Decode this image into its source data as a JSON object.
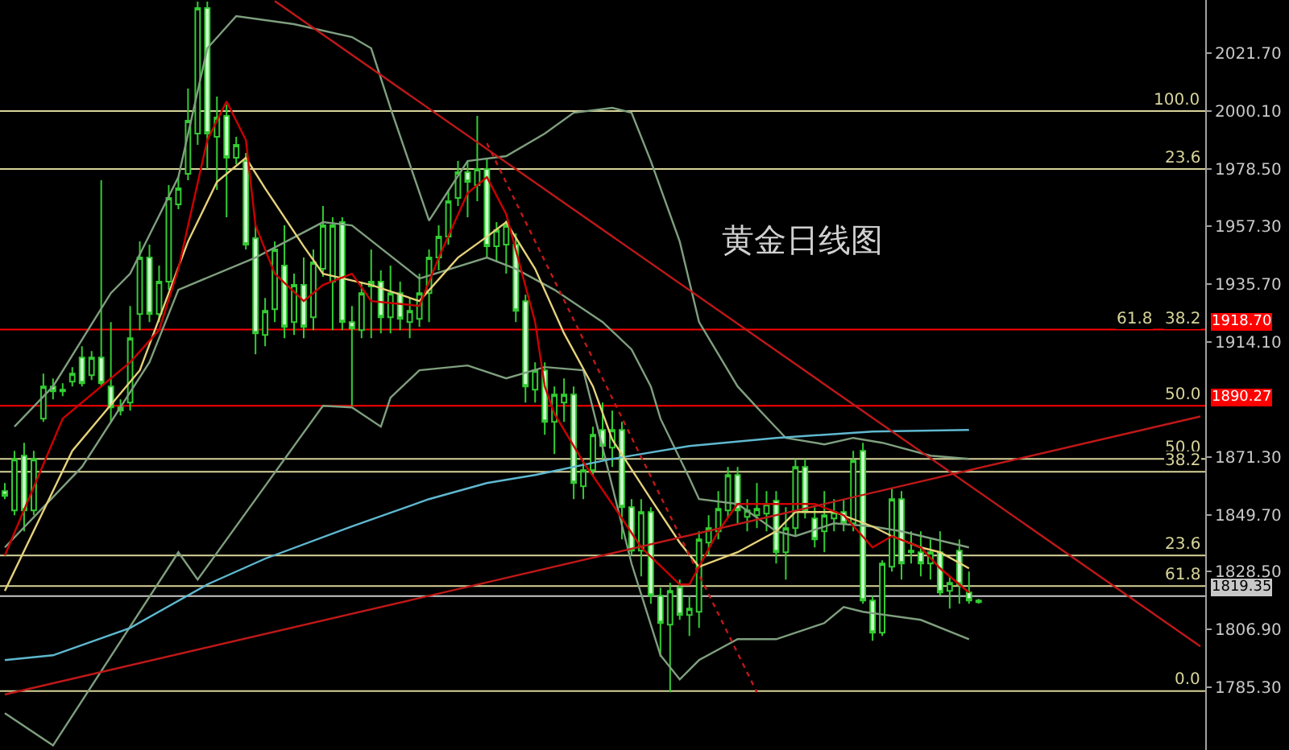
{
  "chart_data": {
    "type": "candlestick",
    "title": "黄金日线图",
    "color": "#33cc33",
    "categories": [
      null,
      null,
      null,
      null,
      null,
      null,
      null,
      null,
      null,
      null,
      null,
      null,
      null,
      null,
      null,
      null,
      null,
      null,
      null,
      null,
      null,
      null,
      null,
      null,
      null,
      null,
      null,
      null,
      null,
      null,
      null,
      null,
      null,
      null,
      null,
      null,
      null,
      null,
      null,
      null,
      null,
      null,
      null,
      null,
      null,
      null,
      null,
      null,
      null,
      null,
      null,
      null,
      null,
      null,
      null,
      null,
      null,
      null,
      null,
      null,
      null,
      null,
      null,
      null,
      null,
      null,
      null,
      null,
      null,
      null,
      null,
      null,
      null,
      null,
      null,
      null,
      null,
      null,
      null,
      null,
      null,
      null,
      null,
      null,
      null,
      null,
      null,
      null,
      null,
      null,
      null,
      null,
      null,
      null,
      null,
      null,
      null,
      null,
      null,
      null,
      null,
      null,
      null,
      null,
      null,
      null,
      null,
      null,
      null,
      null,
      null,
      null,
      null,
      null,
      null,
      null,
      null,
      null,
      null,
      null,
      null,
      null,
      null,
      null,
      null
    ],
    "ohlc": [
      [
        1858.5,
        1861.5,
        1855.5,
        1856.7
      ],
      [
        1851.3,
        1873.5,
        1849.5,
        1870.5
      ],
      [
        1871.7,
        1876.5,
        1843.5,
        1851.3
      ],
      [
        1851.3,
        1873.5,
        1849.5,
        1870.5
      ],
      [
        1885.5,
        1902.3,
        1884.3,
        1897.5
      ],
      [
        1897.5,
        1900.5,
        1892.7,
        1895.7
      ],
      [
        1896.3,
        1898.7,
        1893.9,
        1895.7
      ],
      [
        1899.3,
        1904.7,
        1897.5,
        1902.3
      ],
      [
        1908.3,
        1912.5,
        1897.5,
        1898.7
      ],
      [
        1901.7,
        1910.7,
        1899.9,
        1908.3
      ],
      [
        1908.3,
        1974.3,
        1897.5,
        1898.7
      ],
      [
        1897.5,
        1921.5,
        1884.3,
        1889.7
      ],
      [
        1889.7,
        1892.7,
        1886.7,
        1888.5
      ],
      [
        1891.5,
        1927.5,
        1888.5,
        1915.5
      ],
      [
        1924.5,
        1951.5,
        1918.5,
        1945.5
      ],
      [
        1945.5,
        1950.3,
        1921.5,
        1924.5
      ],
      [
        1924.5,
        1942.5,
        1921.5,
        1936.5
      ],
      [
        1936.5,
        1972.5,
        1933.5,
        1967.7
      ],
      [
        1965.3,
        1975.5,
        1963.5,
        1971.3
      ],
      [
        1976.7,
        2008.5,
        1974.3,
        1996.5
      ],
      [
        1991.7,
        2040.9,
        1987.5,
        2038.5
      ],
      [
        2038.5,
        2040.9,
        1978.5,
        1991.7
      ],
      [
        1990.5,
        2005.5,
        1970.7,
        1997.7
      ],
      [
        1998.3,
        2002.5,
        1960.5,
        1982.7
      ],
      [
        1982.7,
        1990.5,
        1980.3,
        1987.5
      ],
      [
        1981.5,
        1984.5,
        1948.5,
        1950.3
      ],
      [
        1952.7,
        1957.5,
        1909.5,
        1917.3
      ],
      [
        1916.7,
        1930.5,
        1912.5,
        1925.7
      ],
      [
        1926.3,
        1951.5,
        1921.5,
        1948.5
      ],
      [
        1942.5,
        1957.5,
        1915.5,
        1919.7
      ],
      [
        1921.5,
        1939.5,
        1916.7,
        1935.3
      ],
      [
        1935.3,
        1945.5,
        1915.5,
        1919.7
      ],
      [
        1923.3,
        1948.5,
        1918.5,
        1943.7
      ],
      [
        1941.3,
        1964.7,
        1938.3,
        1957.5
      ],
      [
        1936.5,
        1960.5,
        1918.5,
        1957.5
      ],
      [
        1958.7,
        1960.5,
        1918.5,
        1921.5
      ],
      [
        1921.5,
        1927.5,
        1890.3,
        1919.1
      ],
      [
        1918.5,
        1936.5,
        1915.5,
        1932.3
      ],
      [
        1934.7,
        1948.5,
        1915.5,
        1936.5
      ],
      [
        1936.5,
        1940.7,
        1917.3,
        1923.3
      ],
      [
        1923.3,
        1942.5,
        1917.3,
        1932.3
      ],
      [
        1932.3,
        1936.5,
        1918.5,
        1922.7
      ],
      [
        1921.5,
        1930.5,
        1915.5,
        1925.7
      ],
      [
        1922.7,
        1939.5,
        1919.7,
        1932.3
      ],
      [
        1932.3,
        1948.5,
        1921.5,
        1945.5
      ],
      [
        1945.5,
        1957.5,
        1940.7,
        1953.3
      ],
      [
        1953.3,
        1970.7,
        1950.3,
        1966.5
      ],
      [
        1967.7,
        1981.5,
        1964.7,
        1977.3
      ],
      [
        1977.3,
        1981.5,
        1960.5,
        1973.7
      ],
      [
        1972.5,
        1998.3,
        1966.5,
        1978.5
      ],
      [
        1978.5,
        1982.7,
        1945.5,
        1949.7
      ],
      [
        1949.7,
        1958.7,
        1943.7,
        1955.7
      ],
      [
        1950.3,
        1959.3,
        1939.5,
        1957.5
      ],
      [
        1950.3,
        1954.5,
        1921.5,
        1925.7
      ],
      [
        1929.3,
        1931.7,
        1891.5,
        1897.5
      ],
      [
        1896.3,
        1906.5,
        1891.5,
        1903.5
      ],
      [
        1903.5,
        1906.5,
        1879.5,
        1884.3
      ],
      [
        1884.3,
        1897.5,
        1872.3,
        1894.5
      ],
      [
        1891.5,
        1900.5,
        1884.3,
        1894.5
      ],
      [
        1894.5,
        1897.5,
        1855.5,
        1861.5
      ],
      [
        1860.3,
        1870.5,
        1855.5,
        1866.3
      ],
      [
        1866.3,
        1882.5,
        1864.5,
        1879.5
      ],
      [
        1881.3,
        1891.5,
        1870.5,
        1875.3
      ],
      [
        1874.7,
        1888.5,
        1867.5,
        1881.3
      ],
      [
        1881.3,
        1884.3,
        1840.5,
        1852.5
      ],
      [
        1852.5,
        1855.5,
        1834.5,
        1836.3
      ],
      [
        1836.3,
        1855.5,
        1826.7,
        1850.7
      ],
      [
        1850.7,
        1852.5,
        1816.5,
        1819.5
      ],
      [
        1819.5,
        1822.5,
        1796.7,
        1809.3
      ],
      [
        1808.7,
        1824.3,
        1783.5,
        1821.3
      ],
      [
        1822.5,
        1825.5,
        1810.5,
        1812.3
      ],
      [
        1812.3,
        1819.5,
        1804.5,
        1814.7
      ],
      [
        1813.5,
        1843.5,
        1807.5,
        1840.5
      ],
      [
        1839.3,
        1849.5,
        1834.5,
        1844.7
      ],
      [
        1843.5,
        1858.5,
        1840.5,
        1851.9
      ],
      [
        1851.3,
        1867.5,
        1848.3,
        1864.5
      ],
      [
        1864.5,
        1867.5,
        1846.5,
        1851.3
      ],
      [
        1848.9,
        1855.5,
        1843.5,
        1851.3
      ],
      [
        1849.5,
        1861.5,
        1844.7,
        1851.9
      ],
      [
        1850.1,
        1858.5,
        1843.5,
        1853.7
      ],
      [
        1854.9,
        1858.5,
        1831.5,
        1835.7
      ],
      [
        1835.7,
        1852.5,
        1825.5,
        1844.7
      ],
      [
        1844.7,
        1870.5,
        1841.7,
        1867.5
      ],
      [
        1867.5,
        1870.5,
        1848.3,
        1850.7
      ],
      [
        1848.3,
        1852.5,
        1837.5,
        1840.5
      ],
      [
        1843.5,
        1858.5,
        1835.7,
        1849.5
      ],
      [
        1848.3,
        1855.5,
        1843.5,
        1850.7
      ],
      [
        1850.7,
        1855.5,
        1843.5,
        1846.5
      ],
      [
        1846.5,
        1873.5,
        1843.5,
        1869.9
      ],
      [
        1873.5,
        1876.5,
        1816.5,
        1817.7
      ],
      [
        1817.7,
        1819.5,
        1802.7,
        1805.7
      ],
      [
        1805.7,
        1832.7,
        1804.5,
        1831.5
      ],
      [
        1830.3,
        1859.7,
        1828.5,
        1855.5
      ],
      [
        1855.5,
        1858.5,
        1825.5,
        1831.5
      ],
      [
        1835.7,
        1843.5,
        1831.5,
        1836.3
      ],
      [
        1835.7,
        1843.5,
        1826.7,
        1831.5
      ],
      [
        1831.5,
        1840.5,
        1825.5,
        1835.7
      ],
      [
        1835.7,
        1843.5,
        1819.5,
        1820.7
      ],
      [
        1821.3,
        1826.7,
        1814.7,
        1824.3
      ],
      [
        1836.3,
        1840.5,
        1816.5,
        1823.7
      ],
      [
        1820.7,
        1828.5,
        1816.5,
        1817.7
      ],
      [
        1817.7,
        1818.3,
        1816.5,
        1817.1
      ],
      null,
      null,
      null,
      null,
      null,
      null,
      null,
      null,
      null,
      null,
      null,
      null,
      null,
      null,
      null,
      null,
      null,
      null,
      null,
      null,
      null,
      null,
      null
    ],
    "series": [
      {
        "type": "line",
        "color": "#7f9f7f",
        "values": [
          null,
          1882.5,
          null,
          null,
          null,
          1897.5,
          null,
          null,
          null,
          null,
          null,
          1932.3,
          null,
          1939.5,
          null,
          null,
          null,
          null,
          1975.5,
          null,
          null,
          2023.5,
          null,
          null,
          2035.5,
          null,
          null,
          null,
          null,
          null,
          2032.5,
          null,
          null,
          null,
          null,
          null,
          2027.7,
          null,
          2023.5,
          null,
          2001.3,
          null,
          null,
          null,
          1959.3,
          null,
          null,
          null,
          1981.5,
          null,
          null,
          null,
          1983.3,
          null,
          null,
          null,
          1991.7,
          null,
          null,
          1999.5,
          null,
          null,
          null,
          2001.3,
          null,
          1999.5,
          null,
          1981.5,
          null,
          null,
          1951.5,
          null,
          1921.5,
          null,
          null,
          null,
          1897.5,
          null,
          1889.7,
          null,
          null,
          1878.3,
          null,
          null,
          null,
          1875.9,
          null,
          null,
          1878.3,
          null,
          null,
          1876.5,
          null,
          null,
          null,
          null,
          1871.7,
          null,
          null,
          null,
          1870.5,
          null,
          null,
          null,
          null,
          null,
          null,
          null,
          null,
          null,
          null,
          null,
          null,
          null,
          null,
          null,
          null,
          null,
          null,
          null,
          null,
          null,
          null,
          null,
          null
        ]
      },
      {
        "type": "line",
        "color": "#7f9f7f",
        "values": [
          1837.5,
          null,
          null,
          null,
          null,
          null,
          null,
          null,
          1867.5,
          null,
          null,
          null,
          null,
          null,
          null,
          1906.5,
          null,
          null,
          1933.5,
          null,
          null,
          null,
          null,
          null,
          null,
          null,
          1945.5,
          null,
          null,
          null,
          null,
          null,
          null,
          1958.7,
          null,
          null,
          1957.5,
          null,
          null,
          null,
          null,
          null,
          null,
          1937.7,
          null,
          null,
          null,
          null,
          null,
          null,
          1945.5,
          null,
          null,
          1941.3,
          null,
          null,
          null,
          1933.5,
          null,
          null,
          null,
          null,
          1921.5,
          null,
          null,
          1911.3,
          null,
          1897.5,
          1885.5,
          null,
          null,
          1863.3,
          1855.5,
          null,
          null,
          null,
          1853.7,
          null,
          null,
          null,
          1843.5,
          null,
          1841.7,
          null,
          null,
          null,
          1846.5,
          null,
          null,
          null,
          1845.3,
          null,
          null,
          1843.5,
          null,
          null,
          null,
          null,
          null,
          null,
          1837.5,
          null,
          null,
          null,
          null,
          null,
          null,
          null,
          null,
          null,
          null,
          null,
          null,
          null,
          null,
          null,
          null,
          null,
          null,
          null,
          null,
          null,
          null,
          null,
          null
        ]
      },
      {
        "type": "line",
        "color": "#7f9f7f",
        "values": [
          1775.7,
          null,
          null,
          null,
          null,
          1763.7,
          null,
          null,
          null,
          null,
          null,
          null,
          null,
          null,
          null,
          null,
          null,
          null,
          1835.7,
          null,
          1825.5,
          null,
          null,
          null,
          null,
          null,
          null,
          null,
          null,
          null,
          null,
          null,
          null,
          1890.3,
          null,
          null,
          1889.7,
          null,
          null,
          1882.5,
          1893.3,
          null,
          null,
          1903.5,
          null,
          null,
          null,
          null,
          1905.3,
          null,
          null,
          null,
          1900.5,
          null,
          null,
          null,
          1904.7,
          null,
          null,
          null,
          1903.5,
          null,
          null,
          null,
          null,
          1831.5,
          null,
          null,
          1797.3,
          null,
          1788.3,
          null,
          1795.5,
          null,
          null,
          null,
          1803.3,
          null,
          null,
          null,
          1803.3,
          null,
          null,
          null,
          null,
          1809.3,
          null,
          1815.3,
          null,
          1813.5,
          null,
          null,
          null,
          null,
          null,
          1810.5,
          null,
          null,
          null,
          null,
          1803.3,
          null,
          null,
          null,
          null,
          null,
          null,
          null,
          null,
          null,
          null,
          null,
          null,
          null,
          null,
          null,
          null,
          null,
          null,
          null,
          null,
          null,
          null,
          null,
          null
        ]
      },
      {
        "type": "line",
        "color": "#5fb8d0",
        "values": [
          1795.5,
          null,
          null,
          null,
          null,
          1797.3,
          null,
          null,
          null,
          null,
          null,
          null,
          null,
          1807.5,
          null,
          null,
          null,
          null,
          null,
          null,
          null,
          1823.7,
          null,
          null,
          null,
          null,
          null,
          1833.3,
          null,
          null,
          null,
          null,
          null,
          null,
          null,
          null,
          1845.3,
          null,
          null,
          null,
          null,
          null,
          null,
          null,
          1855.5,
          null,
          null,
          null,
          null,
          null,
          1861.5,
          null,
          null,
          null,
          null,
          1864.5,
          null,
          null,
          null,
          null,
          null,
          null,
          null,
          1870.5,
          null,
          null,
          null,
          null,
          null,
          null,
          null,
          1875.3,
          null,
          null,
          null,
          null,
          null,
          null,
          null,
          null,
          1878.3,
          null,
          null,
          null,
          null,
          null,
          null,
          null,
          null,
          null,
          1880.7,
          null,
          null,
          null,
          null,
          null,
          null,
          null,
          null,
          null,
          1881.3,
          null,
          null,
          null,
          null,
          null,
          null,
          null,
          null,
          null,
          null,
          null,
          null,
          null,
          null,
          null,
          null,
          null,
          null,
          null,
          null,
          null,
          null,
          null,
          null
        ]
      },
      {
        "type": "line",
        "color": "#e6d27a",
        "values": [
          1821.3,
          null,
          null,
          null,
          null,
          null,
          null,
          1873.5,
          null,
          null,
          null,
          null,
          null,
          null,
          1903.5,
          null,
          null,
          null,
          null,
          1951.5,
          null,
          null,
          1973.7,
          null,
          null,
          1982.7,
          null,
          1971.3,
          null,
          null,
          null,
          1949.7,
          null,
          1939.5,
          null,
          null,
          null,
          null,
          1935.3,
          null,
          null,
          null,
          null,
          1929.3,
          null,
          null,
          null,
          1945.5,
          null,
          null,
          1953.3,
          null,
          1958.7,
          null,
          null,
          1941.3,
          null,
          null,
          1917.3,
          null,
          null,
          1897.5,
          null,
          1877.7,
          null,
          null,
          null,
          1855.5,
          null,
          null,
          1839.3,
          null,
          1830.3,
          null,
          null,
          null,
          1835.7,
          null,
          null,
          null,
          1843.5,
          null,
          1850.7,
          null,
          null,
          null,
          1850.7,
          null,
          null,
          null,
          1845.3,
          null,
          1841.7,
          null,
          null,
          1837.5,
          null,
          1835.7,
          null,
          null,
          1829.7,
          null,
          null,
          null,
          null,
          null,
          null,
          null,
          null,
          null,
          null,
          null,
          null,
          null,
          null,
          null,
          null,
          null,
          null,
          null,
          null,
          null,
          null,
          null,
          null
        ]
      },
      {
        "type": "line",
        "color": "#cc0000",
        "values": [
          1834.5,
          null,
          null,
          null,
          null,
          null,
          1885.5,
          null,
          null,
          null,
          null,
          null,
          null,
          1906.5,
          null,
          null,
          1918.5,
          null,
          1941.3,
          null,
          null,
          1989.3,
          null,
          2003.7,
          null,
          1989.3,
          1957.5,
          null,
          1939.5,
          null,
          null,
          1929.3,
          null,
          1935.3,
          null,
          null,
          1939.5,
          null,
          1929.3,
          null,
          null,
          null,
          null,
          1927.5,
          null,
          1945.5,
          null,
          null,
          1969.5,
          null,
          1975.5,
          null,
          1961.7,
          null,
          null,
          1921.5,
          1897.5,
          1887.3,
          null,
          null,
          1869.3,
          null,
          null,
          1853.7,
          null,
          null,
          1837.5,
          null,
          null,
          null,
          1823.7,
          1823.7,
          null,
          null,
          1843.5,
          null,
          1853.7,
          null,
          null,
          null,
          1853.7,
          null,
          null,
          null,
          1853.7,
          null,
          null,
          1849.5,
          null,
          null,
          1837.5,
          null,
          1841.7,
          null,
          null,
          1837.5,
          null,
          1829.7,
          null,
          null,
          1820.7,
          null,
          null,
          null,
          null,
          null,
          null,
          null,
          null,
          null,
          null,
          null,
          null,
          null,
          null,
          null,
          null,
          null,
          null,
          null,
          null,
          null,
          null,
          null,
          null
        ]
      },
      {
        "type": "line",
        "color": "#c01818",
        "values": [
          null,
          null,
          null,
          null,
          null,
          null,
          null,
          null,
          null,
          null,
          null,
          null,
          null,
          null,
          null,
          null,
          null,
          null,
          null,
          null,
          null,
          null,
          null,
          null,
          null,
          null,
          null,
          null,
          2041.1,
          null,
          null,
          null,
          null,
          null,
          null,
          null,
          null,
          null,
          null,
          null,
          null,
          null,
          null,
          null,
          null,
          null,
          null,
          null,
          null,
          null,
          null,
          null,
          null,
          null,
          null,
          null,
          null,
          null,
          null,
          null,
          null,
          null,
          null,
          null,
          null,
          null,
          null,
          null,
          null,
          null,
          null,
          null,
          null,
          null,
          null,
          null,
          null,
          null,
          null,
          null,
          null,
          null,
          null,
          null,
          null,
          null,
          null,
          null,
          null,
          null,
          null,
          null,
          null,
          null,
          null,
          null,
          null,
          null,
          null,
          null,
          null,
          null,
          null,
          null,
          null,
          null,
          null,
          null,
          null,
          null,
          null,
          null,
          null,
          null,
          null,
          null,
          null,
          null,
          null,
          null,
          null,
          null,
          null,
          null,
          1800.6
        ]
      },
      {
        "type": "line",
        "color": "#c01818",
        "values": [
          1782.7,
          null,
          null,
          null,
          null,
          null,
          null,
          null,
          null,
          null,
          null,
          null,
          null,
          null,
          null,
          null,
          null,
          null,
          null,
          null,
          null,
          null,
          null,
          null,
          null,
          null,
          null,
          null,
          null,
          null,
          null,
          null,
          null,
          null,
          null,
          null,
          null,
          null,
          null,
          null,
          null,
          null,
          null,
          null,
          null,
          null,
          null,
          null,
          null,
          null,
          null,
          null,
          null,
          null,
          null,
          null,
          null,
          null,
          null,
          null,
          null,
          null,
          null,
          null,
          null,
          null,
          null,
          null,
          null,
          null,
          null,
          null,
          null,
          null,
          null,
          null,
          null,
          null,
          null,
          null,
          null,
          null,
          null,
          null,
          null,
          null,
          null,
          null,
          null,
          null,
          null,
          null,
          null,
          null,
          null,
          null,
          null,
          null,
          null,
          null,
          null,
          null,
          null,
          null,
          null,
          null,
          null,
          null,
          null,
          null,
          null,
          null,
          null,
          null,
          null,
          null,
          null,
          null,
          null,
          null,
          null,
          null,
          null,
          null,
          1886.3
        ]
      },
      {
        "type": "line",
        "color": "#c01818",
        "line_style": "dotted",
        "values": [
          null,
          null,
          null,
          null,
          null,
          null,
          null,
          null,
          null,
          null,
          null,
          null,
          null,
          null,
          null,
          null,
          null,
          null,
          null,
          null,
          null,
          null,
          null,
          null,
          null,
          null,
          null,
          null,
          null,
          null,
          null,
          null,
          null,
          null,
          null,
          null,
          null,
          null,
          null,
          null,
          null,
          null,
          null,
          null,
          null,
          null,
          null,
          null,
          null,
          null,
          1988.1,
          null,
          null,
          null,
          null,
          null,
          null,
          null,
          null,
          null,
          null,
          null,
          null,
          null,
          null,
          null,
          null,
          null,
          null,
          null,
          null,
          null,
          null,
          null,
          null,
          null,
          null,
          null,
          1783.5,
          null,
          null,
          null,
          null,
          null,
          null,
          null,
          null,
          null,
          null,
          null,
          null,
          null,
          null,
          null,
          null,
          null,
          null,
          null,
          null,
          null,
          null,
          null,
          null,
          null,
          null,
          null,
          null,
          null,
          null,
          null,
          null,
          null,
          null,
          null,
          null,
          null,
          null,
          null,
          null,
          null,
          null,
          null,
          null,
          null,
          null
        ]
      }
    ],
    "ylim": [
      1762,
      2041.5
    ],
    "yticks": [
      {
        "value": 2021.7,
        "label": "2021.70"
      },
      {
        "value": 2000.1,
        "label": "2000.10"
      },
      {
        "value": 1978.5,
        "label": "1978.50"
      },
      {
        "value": 1957.3,
        "label": "1957.30"
      },
      {
        "value": 1935.7,
        "label": "1935.70"
      },
      {
        "value": 1914.1,
        "label": "1914.10"
      },
      {
        "value": 1871.3,
        "label": "1871.30"
      },
      {
        "value": 1849.7,
        "label": "1849.70"
      },
      {
        "value": 1828.5,
        "label": "1828.50"
      },
      {
        "value": 1806.9,
        "label": "1806.90"
      },
      {
        "value": 1785.3,
        "label": "1785.30"
      }
    ],
    "ref_lines": [
      {
        "axis": "y",
        "value": 2000.1
      },
      {
        "axis": "y",
        "value": 1978.5
      },
      {
        "axis": "y",
        "value": 1918.7,
        "label": "1918.70",
        "color": "#ff0000"
      },
      {
        "axis": "y",
        "value": 1890.27,
        "label": "1890.27",
        "color": "#ff0000"
      },
      {
        "axis": "y",
        "value": 1870.5
      },
      {
        "axis": "y",
        "value": 1865.7
      },
      {
        "axis": "y",
        "value": 1834.5
      },
      {
        "axis": "y",
        "value": 1823.1
      },
      {
        "axis": "y",
        "value": 1819.35,
        "label": "1819.35",
        "color": "#c8c8c8"
      },
      {
        "axis": "y",
        "value": 1784.0
      }
    ],
    "annotations": [
      {
        "text": "100.0",
        "y": 2000.1
      },
      {
        "text": "23.6",
        "y": 1978.5
      },
      {
        "text": "38.2",
        "y": 1918.7
      },
      {
        "text": "61.8",
        "y": 1918.7
      },
      {
        "text": "50.0",
        "y": 1890.27
      },
      {
        "text": "50.0",
        "y": 1870.5
      },
      {
        "text": "38.2",
        "y": 1865.7
      },
      {
        "text": "23.6",
        "y": 1834.5
      },
      {
        "text": "61.8",
        "y": 1823.1
      },
      {
        "text": "0.0",
        "y": 1784.0
      }
    ],
    "grid": false,
    "tick_labels": "y"
  }
}
